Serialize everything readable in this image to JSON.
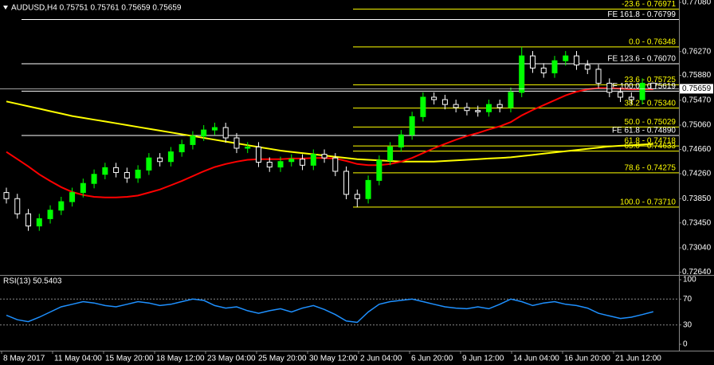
{
  "chart_data": [
    {
      "type": "candlestick",
      "title": "AUDUSD,H4  0.75751 0.75761 0.75659 0.75659",
      "open": [
        0.7395,
        0.7385,
        0.736,
        0.734,
        0.7352,
        0.7366,
        0.738,
        0.7395,
        0.741,
        0.7425,
        0.7436,
        0.7428,
        0.7419,
        0.7432,
        0.7452,
        0.7446,
        0.7462,
        0.7474,
        0.7488,
        0.7498,
        0.7502,
        0.7485,
        0.7468,
        0.747,
        0.7445,
        0.7437,
        0.7446,
        0.745,
        0.744,
        0.7458,
        0.7452,
        0.743,
        0.7392,
        0.7385,
        0.7415,
        0.7448,
        0.747,
        0.749,
        0.752,
        0.7552,
        0.7548,
        0.754,
        0.7535,
        0.753,
        0.7528,
        0.754,
        0.7535,
        0.756,
        0.762,
        0.76,
        0.7592,
        0.7612,
        0.762,
        0.7605,
        0.7598,
        0.7575,
        0.756,
        0.7552,
        0.7548,
        0.75751
      ],
      "high": [
        0.7403,
        0.7393,
        0.7368,
        0.736,
        0.7374,
        0.7388,
        0.7403,
        0.7418,
        0.7433,
        0.7444,
        0.7444,
        0.7436,
        0.744,
        0.746,
        0.746,
        0.747,
        0.7482,
        0.7496,
        0.7506,
        0.751,
        0.751,
        0.7493,
        0.7478,
        0.7478,
        0.7453,
        0.7454,
        0.7458,
        0.7458,
        0.7466,
        0.7466,
        0.746,
        0.7438,
        0.74,
        0.7423,
        0.7456,
        0.7478,
        0.7498,
        0.7528,
        0.756,
        0.756,
        0.7556,
        0.7548,
        0.7543,
        0.7538,
        0.7548,
        0.7548,
        0.7568,
        0.76348,
        0.7628,
        0.7608,
        0.762,
        0.7628,
        0.7628,
        0.7613,
        0.7606,
        0.7583,
        0.7568,
        0.756,
        0.7583,
        0.75761
      ],
      "low": [
        0.7377,
        0.7352,
        0.7332,
        0.7332,
        0.7344,
        0.7358,
        0.7372,
        0.7387,
        0.7402,
        0.7417,
        0.742,
        0.7411,
        0.7411,
        0.7424,
        0.7438,
        0.7438,
        0.7454,
        0.7466,
        0.748,
        0.749,
        0.7477,
        0.746,
        0.746,
        0.7437,
        0.7429,
        0.7429,
        0.7438,
        0.7432,
        0.7432,
        0.7444,
        0.7422,
        0.7384,
        0.7371,
        0.7377,
        0.7407,
        0.744,
        0.7462,
        0.7482,
        0.7512,
        0.754,
        0.7532,
        0.7527,
        0.7522,
        0.752,
        0.752,
        0.7527,
        0.7527,
        0.7552,
        0.7592,
        0.7584,
        0.7584,
        0.7604,
        0.7597,
        0.759,
        0.7567,
        0.7552,
        0.7544,
        0.754,
        0.754,
        0.75659
      ],
      "close": [
        0.7385,
        0.736,
        0.734,
        0.7352,
        0.7366,
        0.738,
        0.7395,
        0.741,
        0.7425,
        0.7436,
        0.7428,
        0.7419,
        0.7432,
        0.7452,
        0.7446,
        0.7462,
        0.7474,
        0.7488,
        0.7498,
        0.7502,
        0.7485,
        0.7468,
        0.747,
        0.7445,
        0.7437,
        0.7446,
        0.745,
        0.744,
        0.7458,
        0.7452,
        0.743,
        0.7392,
        0.7385,
        0.7415,
        0.7448,
        0.747,
        0.749,
        0.752,
        0.7552,
        0.7548,
        0.754,
        0.7535,
        0.753,
        0.7528,
        0.754,
        0.7535,
        0.756,
        0.762,
        0.76,
        0.7592,
        0.7612,
        0.762,
        0.7605,
        0.7598,
        0.7575,
        0.756,
        0.7552,
        0.7548,
        0.7575,
        0.75659
      ],
      "up_color": "#00ff00",
      "down_color": "#ffffff",
      "overlays": [
        {
          "color": "#ffff00",
          "values": [
            0.7545,
            0.7541,
            0.7537,
            0.7533,
            0.7529,
            0.7525,
            0.7521,
            0.7518,
            0.7515,
            0.7512,
            0.7509,
            0.7506,
            0.7503,
            0.75,
            0.7497,
            0.7494,
            0.7491,
            0.7488,
            0.7485,
            0.7482,
            0.7479,
            0.7476,
            0.7473,
            0.747,
            0.7467,
            0.7464,
            0.7462,
            0.746,
            0.7458,
            0.7456,
            0.7454,
            0.7452,
            0.745,
            0.7449,
            0.7448,
            0.7447,
            0.7446,
            0.7446,
            0.7446,
            0.7446,
            0.7447,
            0.7448,
            0.7449,
            0.745,
            0.7451,
            0.7452,
            0.7453,
            0.7455,
            0.7457,
            0.7459,
            0.7461,
            0.7463,
            0.7465,
            0.7467,
            0.7469,
            0.7471,
            0.7472,
            0.7473,
            0.7474,
            0.7475
          ]
        },
        {
          "color": "#ff0000",
          "values": [
            0.7462,
            0.745,
            0.7438,
            0.7425,
            0.7414,
            0.7404,
            0.7396,
            0.7391,
            0.7388,
            0.7387,
            0.7387,
            0.7388,
            0.739,
            0.7395,
            0.74,
            0.7407,
            0.7414,
            0.7422,
            0.743,
            0.7437,
            0.7442,
            0.7446,
            0.7449,
            0.745,
            0.745,
            0.745,
            0.7451,
            0.7451,
            0.7452,
            0.7452,
            0.7451,
            0.7447,
            0.7442,
            0.744,
            0.744,
            0.7442,
            0.7446,
            0.7452,
            0.746,
            0.7468,
            0.7475,
            0.7482,
            0.7488,
            0.7493,
            0.7499,
            0.7504,
            0.7511,
            0.7522,
            0.7531,
            0.7539,
            0.7547,
            0.7555,
            0.7561,
            0.7565,
            0.7567,
            0.7567,
            0.7566,
            0.7565,
            0.7565,
            0.7565
          ]
        }
      ],
      "levels": [
        {
          "value": 0.76971,
          "label": "-23.6 - 0.76971",
          "kind": "fibo",
          "color": "#ffff00"
        },
        {
          "value": 0.76799,
          "label": "FE 161.8 - 0.76799",
          "kind": "fe",
          "color": "#ffffff"
        },
        {
          "value": 0.76348,
          "label": "0.0 - 0.76348",
          "kind": "fibo",
          "color": "#ffff00"
        },
        {
          "value": 0.7607,
          "label": "FE 123.6 - 0.76070",
          "kind": "fe",
          "color": "#ffffff"
        },
        {
          "value": 0.75725,
          "label": "23.6 - 0.75725",
          "kind": "fibo",
          "color": "#ffff00"
        },
        {
          "value": 0.75619,
          "label": "FE 100.0 - 0.75619",
          "kind": "fe",
          "color": "#ffffff"
        },
        {
          "value": 0.7534,
          "label": "38.2 - 0.75340",
          "kind": "fibo",
          "color": "#ffff00"
        },
        {
          "value": 0.75029,
          "label": "50.0 - 0.75029",
          "kind": "fibo",
          "color": "#ffff00"
        },
        {
          "value": 0.7489,
          "label": "FE 61.8 - 0.74890",
          "kind": "fe",
          "color": "#ffffff"
        },
        {
          "value": 0.74718,
          "label": "61.8 - 0.74718",
          "kind": "fibo",
          "color": "#ffff00"
        },
        {
          "value": 0.74633,
          "label": "65.0 - 0.74633",
          "kind": "fibo",
          "color": "#ffff00"
        },
        {
          "value": 0.74275,
          "label": "78.6 - 0.74275",
          "kind": "fibo",
          "color": "#ffff00"
        },
        {
          "value": 0.7371,
          "label": "100.0 - 0.73710",
          "kind": "fibo",
          "color": "#ffff00"
        }
      ],
      "current_price": {
        "value": 0.75659,
        "label": "0.75659"
      },
      "ylim": [
        0.7262,
        0.7712
      ],
      "yticks": [
        {
          "value": 0.7708,
          "label": "0.77080"
        },
        {
          "value": 0.7627,
          "label": "0.76270"
        },
        {
          "value": 0.7588,
          "label": "0.75880"
        },
        {
          "value": 0.7547,
          "label": "0.75470"
        },
        {
          "value": 0.7506,
          "label": "0.75060"
        },
        {
          "value": 0.7466,
          "label": "0.74660"
        },
        {
          "value": 0.7426,
          "label": "0.74260"
        },
        {
          "value": 0.7385,
          "label": "0.73850"
        },
        {
          "value": 0.7345,
          "label": "0.73450"
        },
        {
          "value": 0.7304,
          "label": "0.73040"
        },
        {
          "value": 0.7264,
          "label": "0.72640"
        }
      ],
      "x_labels": [
        "8 May 2017",
        "11 May 04:00",
        "15 May 20:00",
        "18 May 12:00",
        "23 May 04:00",
        "25 May 20:00",
        "30 May 12:00",
        "2 Jun 04:00",
        "6 Jun 20:00",
        "9 Jun 12:00",
        "14 Jun 04:00",
        "16 Jun 20:00",
        "21 Jun 12:00"
      ]
    },
    {
      "type": "line",
      "title": "RSI(13) 50.5403",
      "color": "#1e90ff",
      "values": [
        45,
        38,
        35,
        42,
        50,
        58,
        62,
        66,
        64,
        60,
        58,
        62,
        66,
        64,
        60,
        62,
        66,
        70,
        68,
        60,
        56,
        58,
        52,
        48,
        52,
        55,
        50,
        56,
        60,
        54,
        46,
        36,
        34,
        50,
        62,
        66,
        68,
        70,
        66,
        62,
        58,
        56,
        55,
        58,
        55,
        62,
        70,
        66,
        60,
        64,
        66,
        62,
        60,
        56,
        48,
        44,
        40,
        42,
        46,
        50.5403
      ],
      "ylim": [
        0,
        100
      ],
      "yticks": [
        100,
        70,
        30,
        0
      ],
      "levels": [
        70,
        30
      ]
    }
  ]
}
